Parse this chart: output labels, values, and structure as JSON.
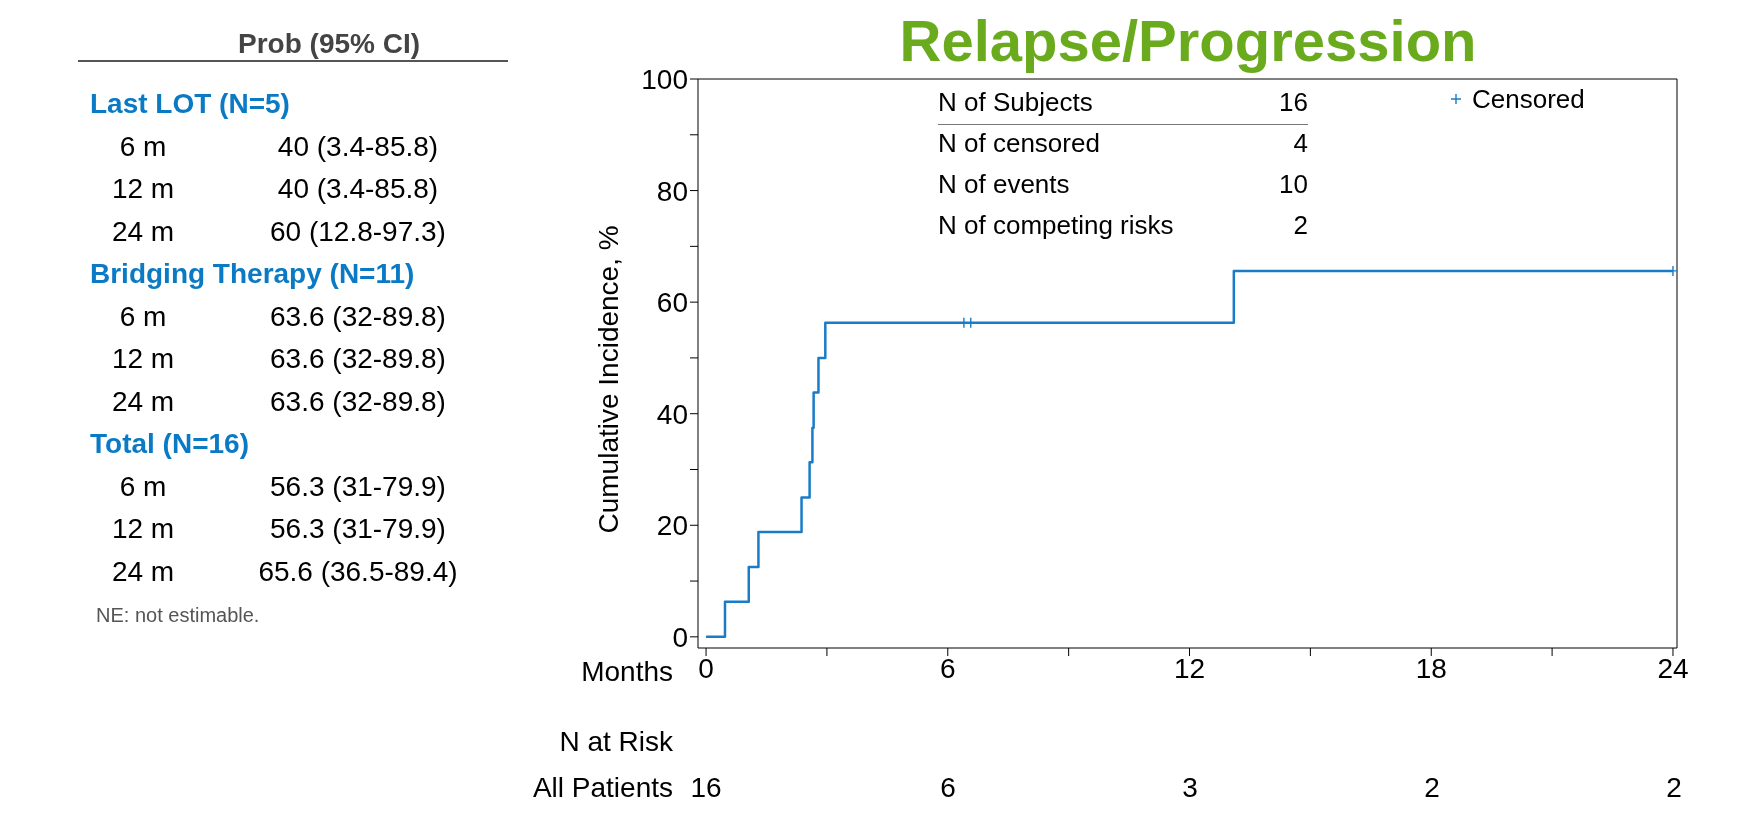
{
  "chart_data": {
    "type": "step",
    "title": "Relapse/Progression",
    "xlabel": "Months",
    "ylabel": "Cumulative Incidence, %",
    "x": [
      0,
      0.47,
      1.06,
      1.3,
      2.37,
      2.57,
      2.64,
      2.67,
      2.79,
      2.96,
      13.1,
      24
    ],
    "series": [
      {
        "color": "#1a7cc7",
        "values": [
          0,
          6.3,
          12.5,
          18.8,
          25,
          31.3,
          37.5,
          43.8,
          50,
          56.3,
          65.6,
          65.6
        ]
      },
      {
        "type": "scatter",
        "name": "Censored",
        "color": "#1a7cc7",
        "marker": "cross",
        "x": [
          6.4,
          6.57,
          24
        ],
        "values": [
          56.3,
          56.3,
          65.6
        ]
      }
    ],
    "legend": "top right",
    "xlim": [
      -0.2,
      24.1
    ],
    "xticks": [
      0,
      {
        "value": 3,
        "label": null
      },
      6,
      {
        "value": 9,
        "label": null
      },
      12,
      {
        "value": 15,
        "label": null
      },
      18,
      {
        "value": 21,
        "label": null
      },
      24
    ],
    "ylim": [
      -2,
      100
    ],
    "yticks": [
      0,
      {
        "value": 10,
        "label": null
      },
      20,
      {
        "value": 30,
        "label": null
      },
      40,
      {
        "value": 50,
        "label": null
      },
      60,
      {
        "value": 70,
        "label": null
      },
      80,
      {
        "value": 90,
        "label": null
      },
      100
    ],
    "annotations": [
      "Prob (95% CI)",
      "Last LOT (N=5)",
      "6 m",
      "40 (3.4-85.8)",
      "12 m",
      "40 (3.4-85.8)",
      "24 m",
      "60 (12.8-97.3)",
      "Bridging Therapy (N=11)",
      "6 m",
      "63.6 (32-89.8)",
      "12 m",
      "63.6 (32-89.8)",
      "24 m",
      "63.6 (32-89.8)",
      "Total (N=16)",
      "6 m",
      "56.3 (31-79.9)",
      "12 m",
      "56.3 (31-79.9)",
      "24 m",
      "65.6 (36.5-89.4)",
      "NE: not estimable.",
      "N of Subjects",
      "16",
      "N of censored",
      "4",
      "N of events",
      "10",
      "N of competing risks",
      "2",
      "N at Risk",
      "All Patients",
      "16",
      "6",
      "3",
      "2",
      "2"
    ]
  }
}
